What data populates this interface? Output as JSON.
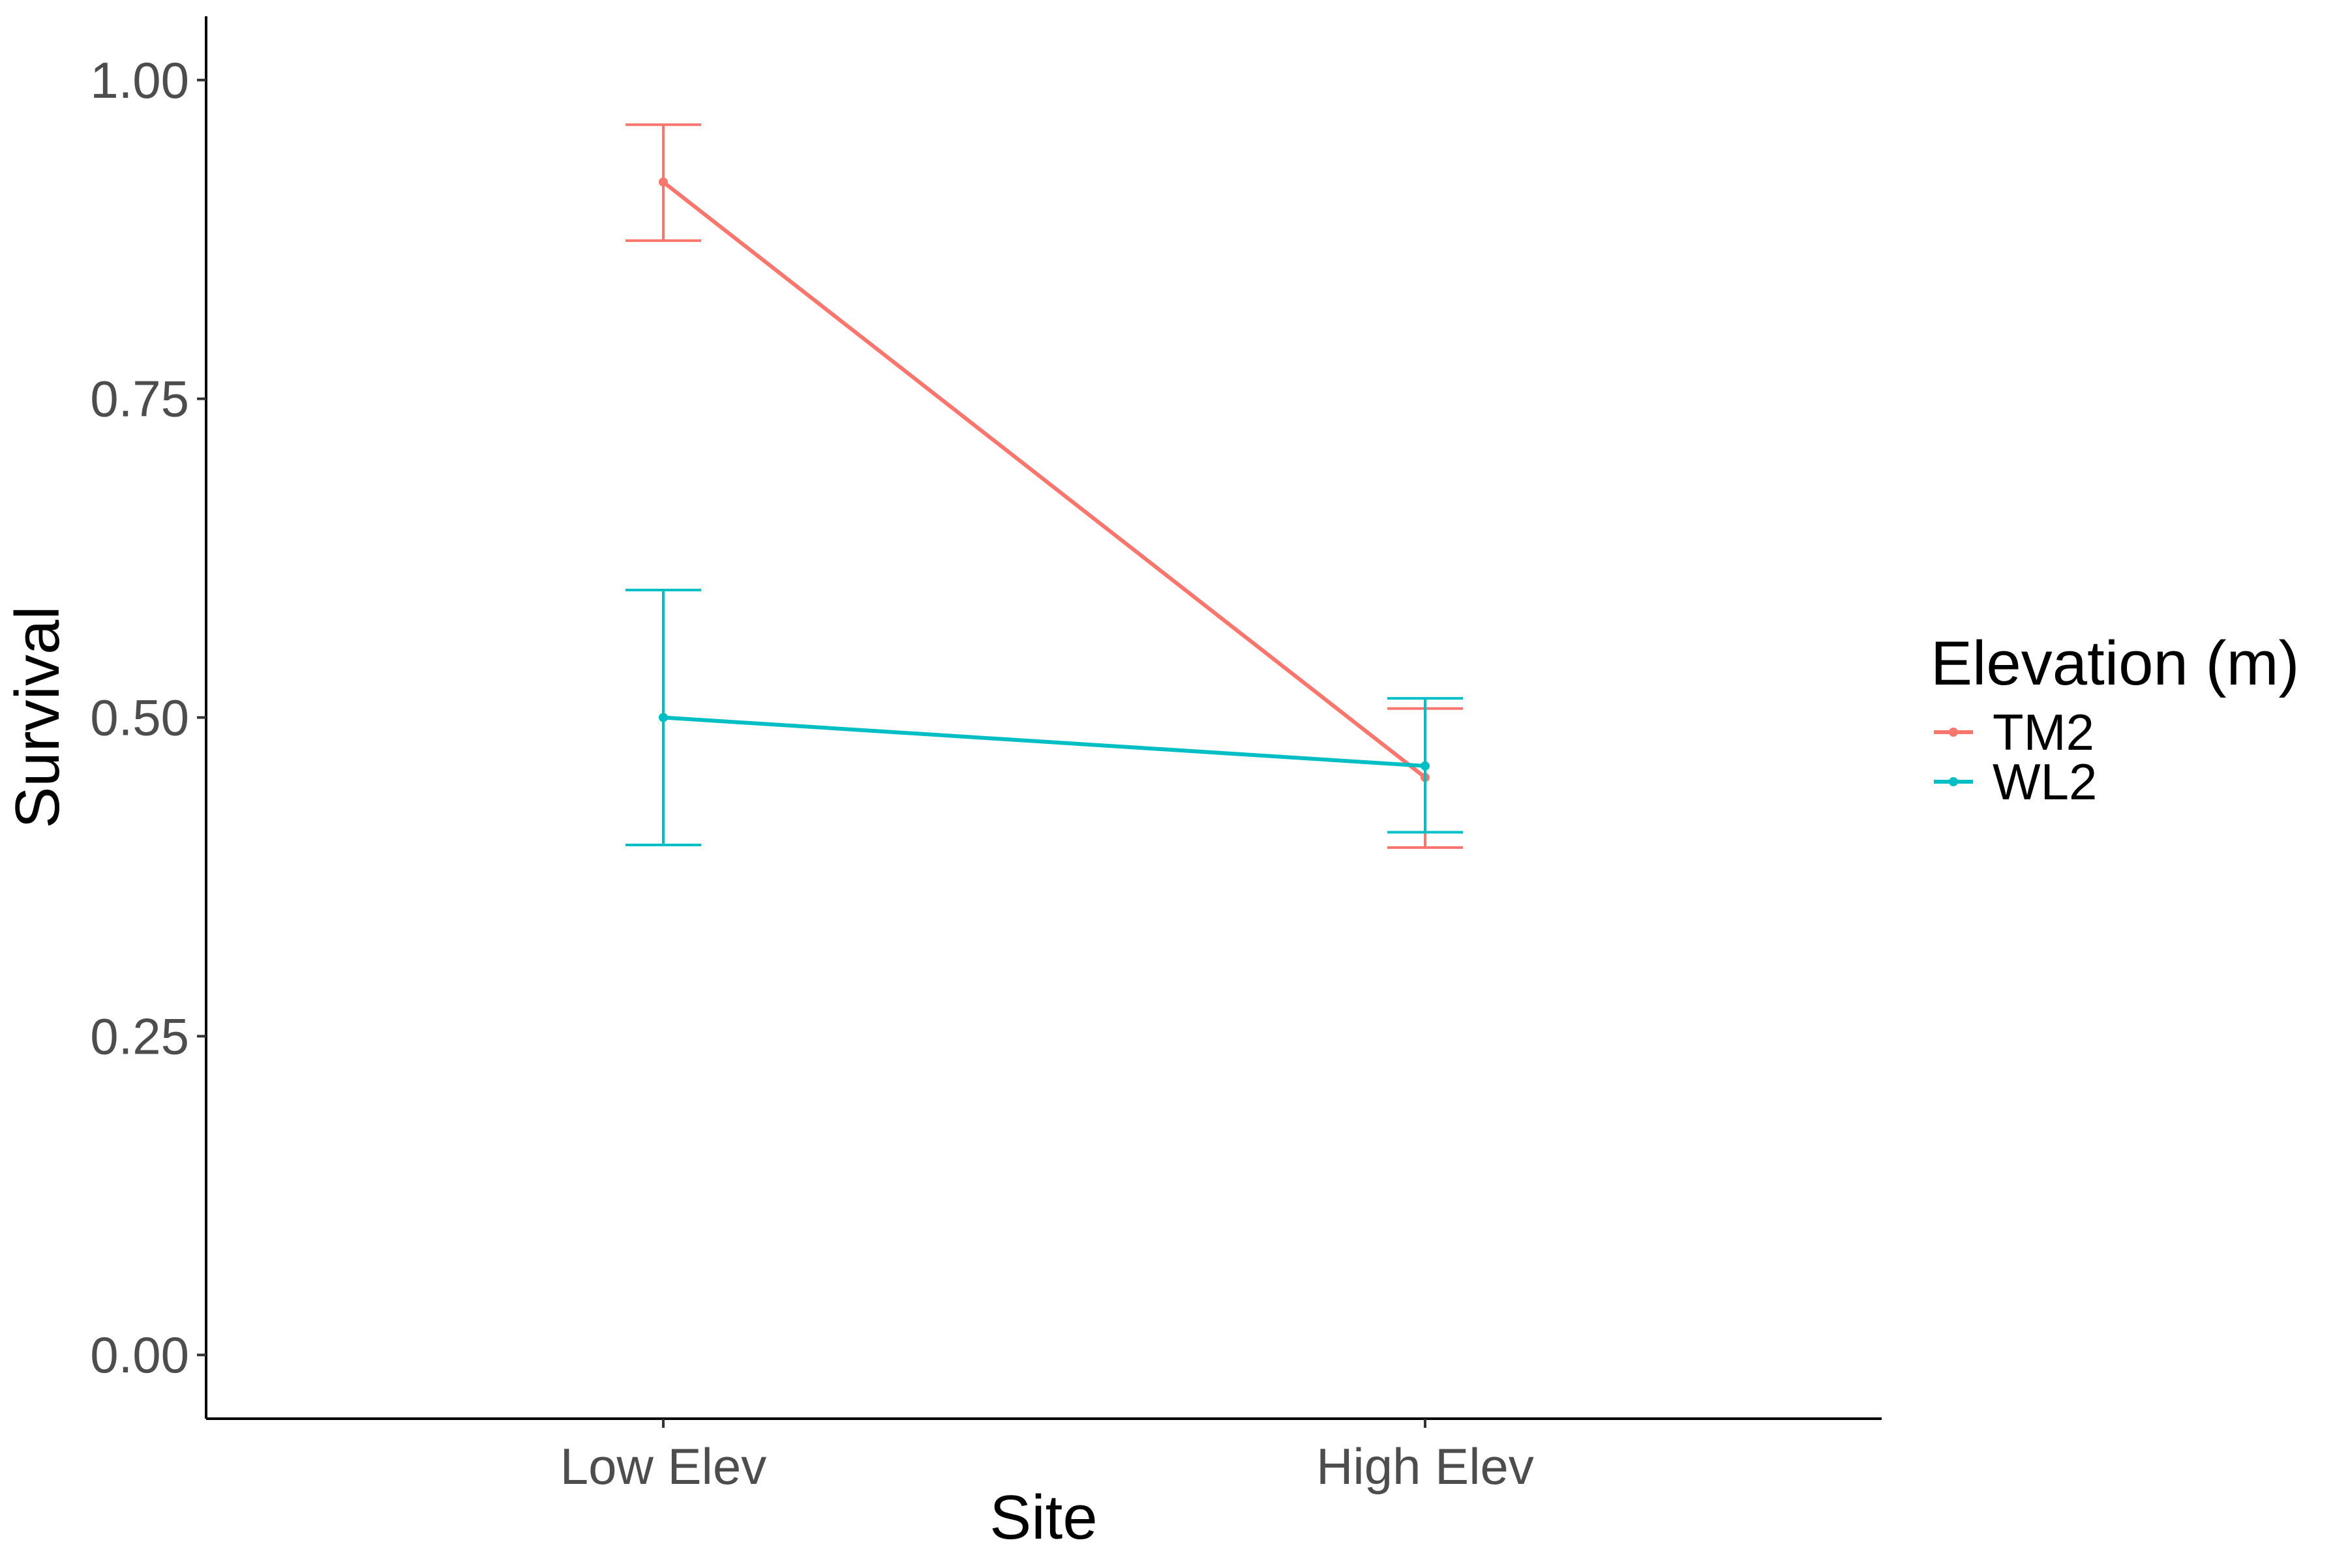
{
  "chart_data": {
    "type": "line",
    "title": "",
    "xlabel": "Site",
    "ylabel": "Survival",
    "categories": [
      "Low Elev",
      "High Elev"
    ],
    "ylim": [
      -0.05,
      1.05
    ],
    "yticks": [
      0.0,
      0.25,
      0.5,
      0.75,
      1.0
    ],
    "ytick_labels": [
      "0.00",
      "0.25",
      "0.50",
      "0.75",
      "1.00"
    ],
    "grid": false,
    "legend": {
      "title": "Elevation (m)",
      "position": "right"
    },
    "series": [
      {
        "name": "TM2",
        "color": "#F8766D",
        "values": [
          0.92,
          0.453
        ],
        "error_low": [
          0.874,
          0.398
        ],
        "error_high": [
          0.965,
          0.507
        ]
      },
      {
        "name": "WL2",
        "color": "#00BFC4",
        "values": [
          0.5,
          0.462
        ],
        "error_low": [
          0.4,
          0.41
        ],
        "error_high": [
          0.6,
          0.515
        ]
      }
    ]
  }
}
